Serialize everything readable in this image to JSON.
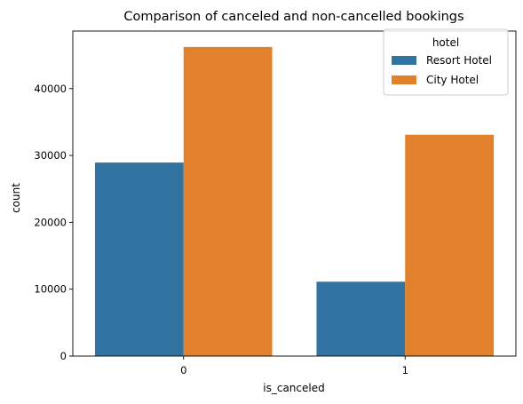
{
  "chart_data": {
    "type": "bar",
    "title": "Comparison of canceled and non-cancelled bookings",
    "xlabel": "is_canceled",
    "ylabel": "count",
    "categories": [
      "0",
      "1"
    ],
    "ylim": [
      0,
      48600
    ],
    "yticks": [
      0,
      10000,
      20000,
      30000,
      40000
    ],
    "ytick_labels": [
      "0",
      "10000",
      "20000",
      "30000",
      "40000"
    ],
    "grid": false,
    "legend": {
      "title": "hotel",
      "placement": "top-right"
    },
    "series": [
      {
        "name": "Resort Hotel",
        "color": "#3274a1",
        "values": [
          28938,
          11122
        ]
      },
      {
        "name": "City Hotel",
        "color": "#e1812c",
        "values": [
          46228,
          33102
        ]
      }
    ]
  }
}
